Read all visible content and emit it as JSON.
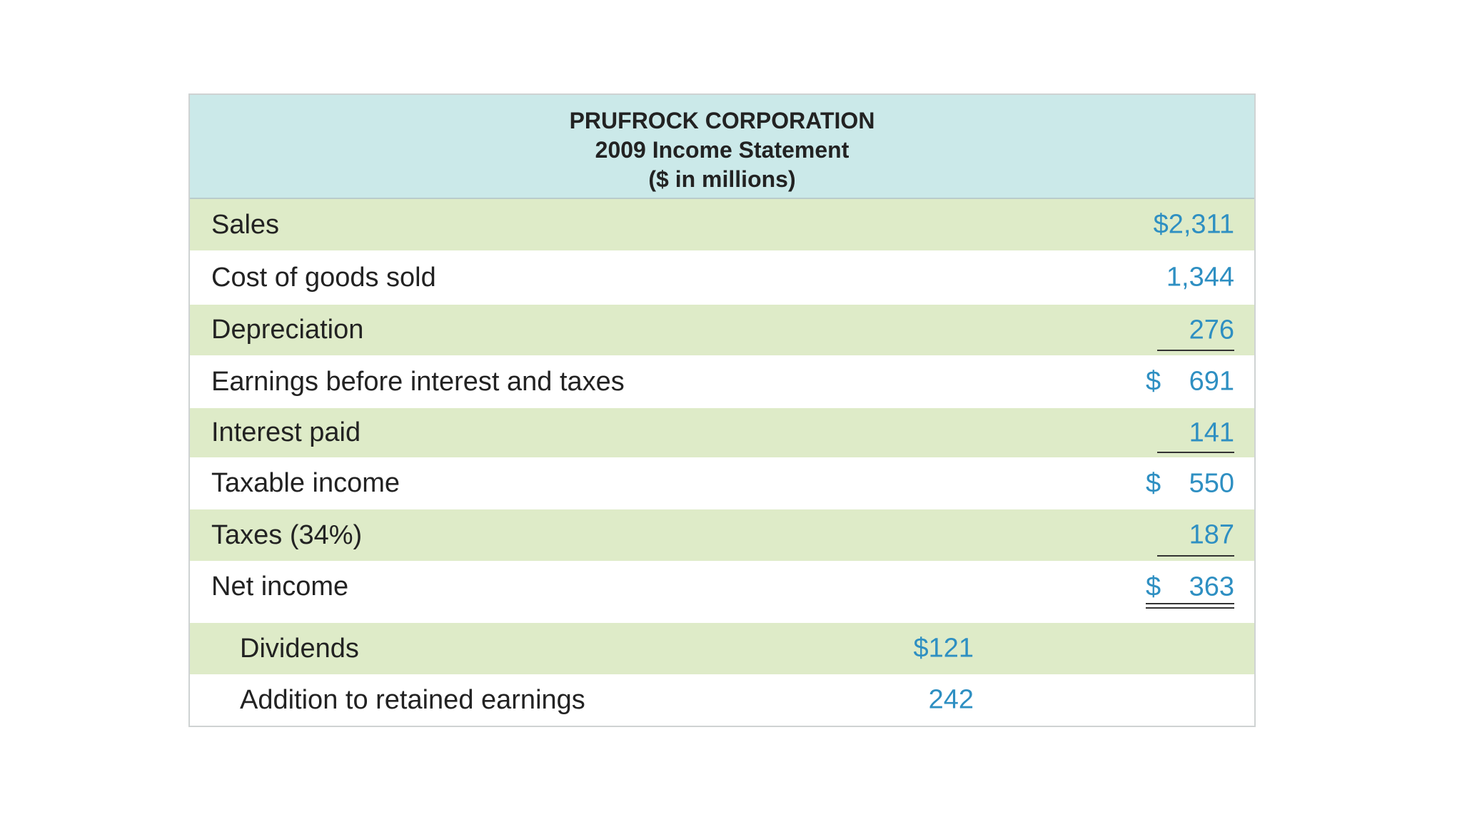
{
  "header": {
    "company": "PRUFROCK CORPORATION",
    "title": "2009 Income Statement",
    "units": "($ in millions)"
  },
  "table": {
    "rows": [
      {
        "label": "Sales",
        "amount": "$2,311"
      },
      {
        "label": "Cost of goods sold",
        "amount": "1,344"
      },
      {
        "label": "Depreciation",
        "amount": "276"
      },
      {
        "label": "Earnings before interest and taxes",
        "symbol": "$",
        "amount": "691"
      },
      {
        "label": "Interest paid",
        "amount": "141"
      },
      {
        "label": "Taxable income",
        "symbol": "$",
        "amount": "550"
      },
      {
        "label": "Taxes (34%)",
        "amount": "187"
      },
      {
        "label": "Net income",
        "symbol": "$",
        "amount": "363"
      },
      {
        "label": "Dividends",
        "amount": "$121"
      },
      {
        "label": "Addition to retained earnings",
        "amount": "242"
      }
    ]
  }
}
